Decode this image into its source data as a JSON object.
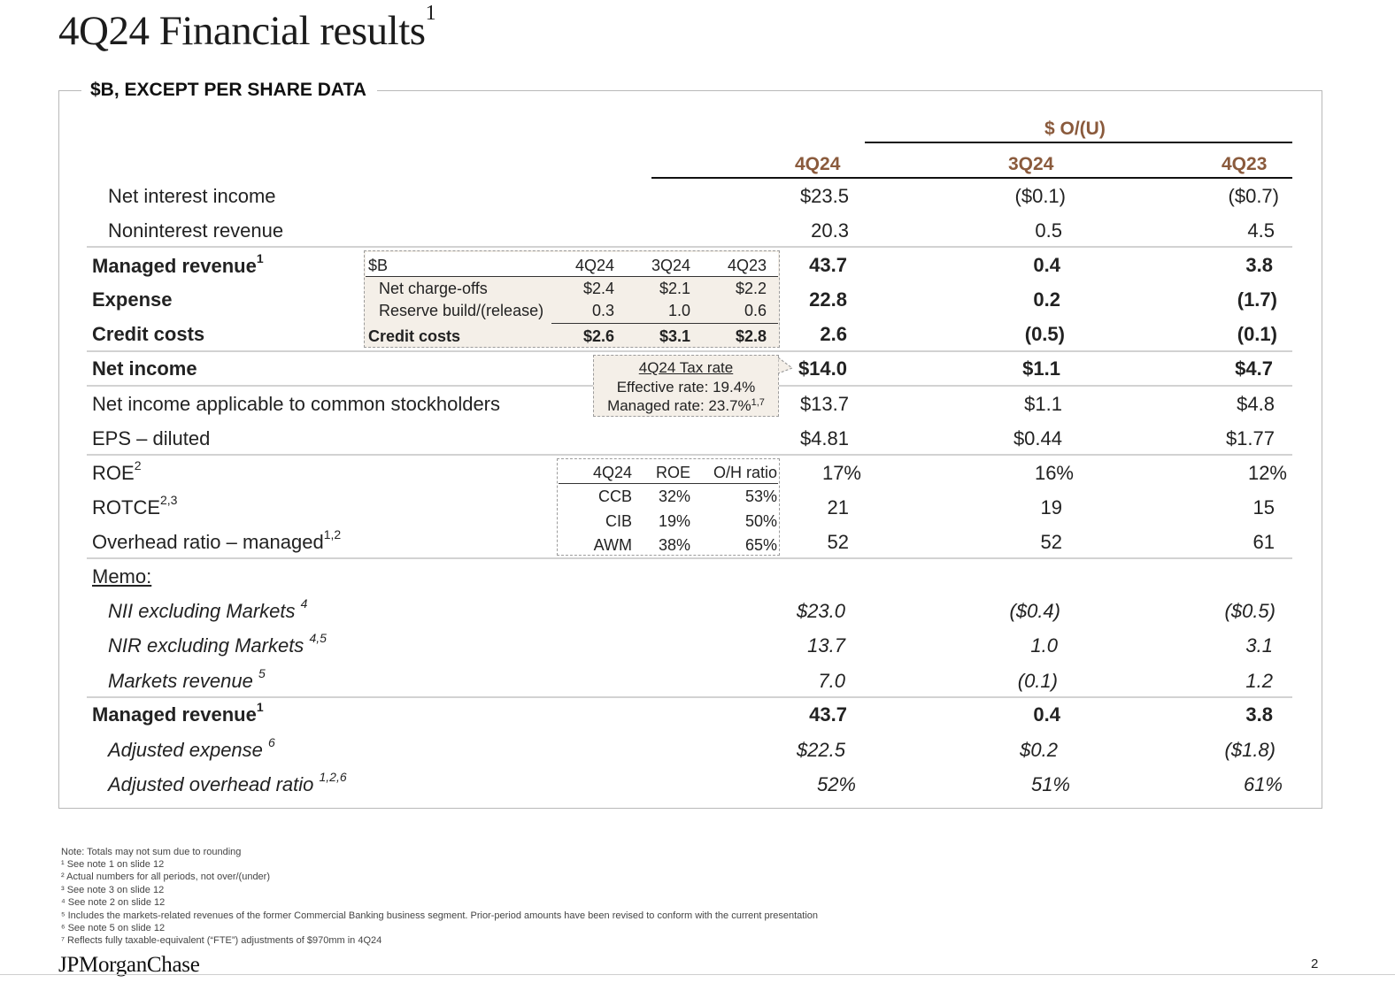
{
  "title": "4Q24 Financial results",
  "title_sup": "1",
  "subtitle": "$B, EXCEPT PER SHARE DATA",
  "headers": {
    "ou": "$ O/(U)",
    "col1": "4Q24",
    "col2": "3Q24",
    "col3": "4Q23"
  },
  "rows": [
    {
      "label": "Net interest income",
      "sup": "",
      "v1": "$23.5",
      "v2": "($0.1)",
      "v3": "($0.7)"
    },
    {
      "label": "Noninterest revenue",
      "sup": "",
      "v1": "20.3",
      "v2": "0.5",
      "v3": "4.5"
    },
    {
      "label": "Managed revenue",
      "sup": "1",
      "v1": "43.7",
      "v2": "0.4",
      "v3": "3.8"
    },
    {
      "label": "Expense",
      "sup": "",
      "v1": "22.8",
      "v2": "0.2",
      "v3": "(1.7)"
    },
    {
      "label": "Credit costs",
      "sup": "",
      "v1": "2.6",
      "v2": "(0.5)",
      "v3": "(0.1)"
    },
    {
      "label": "Net income",
      "sup": "",
      "v1": "$14.0",
      "v2": "$1.1",
      "v3": "$4.7"
    },
    {
      "label": "Net income applicable to common stockholders",
      "sup": "",
      "v1": "$13.7",
      "v2": "$1.1",
      "v3": "$4.8"
    },
    {
      "label": "EPS – diluted",
      "sup": "",
      "v1": "$4.81",
      "v2": "$0.44",
      "v3": "$1.77"
    },
    {
      "label": "ROE",
      "sup": "2",
      "v1": "17%",
      "v2": "16%",
      "v3": "12%"
    },
    {
      "label": "ROTCE",
      "sup": "2,3",
      "v1": "21",
      "v2": "19",
      "v3": "15"
    },
    {
      "label": "Overhead ratio – managed",
      "sup": "1,2",
      "v1": "52",
      "v2": "52",
      "v3": "61"
    },
    {
      "label": "Memo:",
      "sup": "",
      "v1": "",
      "v2": "",
      "v3": ""
    },
    {
      "label": "NII excluding Markets",
      "sup": "4",
      "v1": "$23.0",
      "v2": "($0.4)",
      "v3": "($0.5)"
    },
    {
      "label": "NIR excluding Markets",
      "sup": "4,5",
      "v1": "13.7",
      "v2": "1.0",
      "v3": "3.1"
    },
    {
      "label": "Markets revenue",
      "sup": "5",
      "v1": "7.0",
      "v2": "(0.1)",
      "v3": "1.2"
    },
    {
      "label": "Managed revenue",
      "sup": "1",
      "v1": "43.7",
      "v2": "0.4",
      "v3": "3.8"
    },
    {
      "label": "Adjusted expense",
      "sup": "6",
      "v1": "$22.5",
      "v2": "$0.2",
      "v3": "($1.8)"
    },
    {
      "label": "Adjusted overhead ratio",
      "sup": "1,2,6",
      "v1": "52%",
      "v2": "51%",
      "v3": "61%"
    }
  ],
  "credit_box": {
    "unit": "$B",
    "cols": [
      "4Q24",
      "3Q24",
      "4Q23"
    ],
    "rows": [
      {
        "label": "Net charge-offs",
        "values": [
          "$2.4",
          "$2.1",
          "$2.2"
        ]
      },
      {
        "label": "Reserve build/(release)",
        "values": [
          "0.3",
          "1.0",
          "0.6"
        ]
      },
      {
        "label": "Credit costs",
        "values": [
          "$2.6",
          "$3.1",
          "$2.8"
        ]
      }
    ]
  },
  "tax_box": {
    "title": "4Q24 Tax rate",
    "effective": "Effective rate: 19.4%",
    "managed": "Managed rate: 23.7%",
    "managed_sup": "1,7"
  },
  "roe_box": {
    "cols": [
      "4Q24",
      "ROE",
      "O/H ratio"
    ],
    "rows": [
      {
        "seg": "CCB",
        "roe": "32%",
        "oh": "53%"
      },
      {
        "seg": "CIB",
        "roe": "19%",
        "oh": "50%"
      },
      {
        "seg": "AWM",
        "roe": "38%",
        "oh": "65%"
      }
    ]
  },
  "footnotes": [
    "Note: Totals may not sum due to rounding",
    "¹ See note 1 on slide 12",
    "² Actual numbers for all periods, not over/(under)",
    "³ See note 3 on slide 12",
    "⁴ See note 2 on slide 12",
    "⁵ Includes the markets-related revenues of the former Commercial Banking business segment. Prior-period amounts have been revised to conform with the current presentation",
    "⁶ See note 5 on slide 12",
    "⁷ Reflects fully taxable-equivalent (“FTE”) adjustments of $970mm in 4Q24"
  ],
  "logo": "JPMorganChase",
  "page_number": "2",
  "colors": {
    "accent": "#8a5a3c",
    "box_fill": "#f4efe8"
  }
}
